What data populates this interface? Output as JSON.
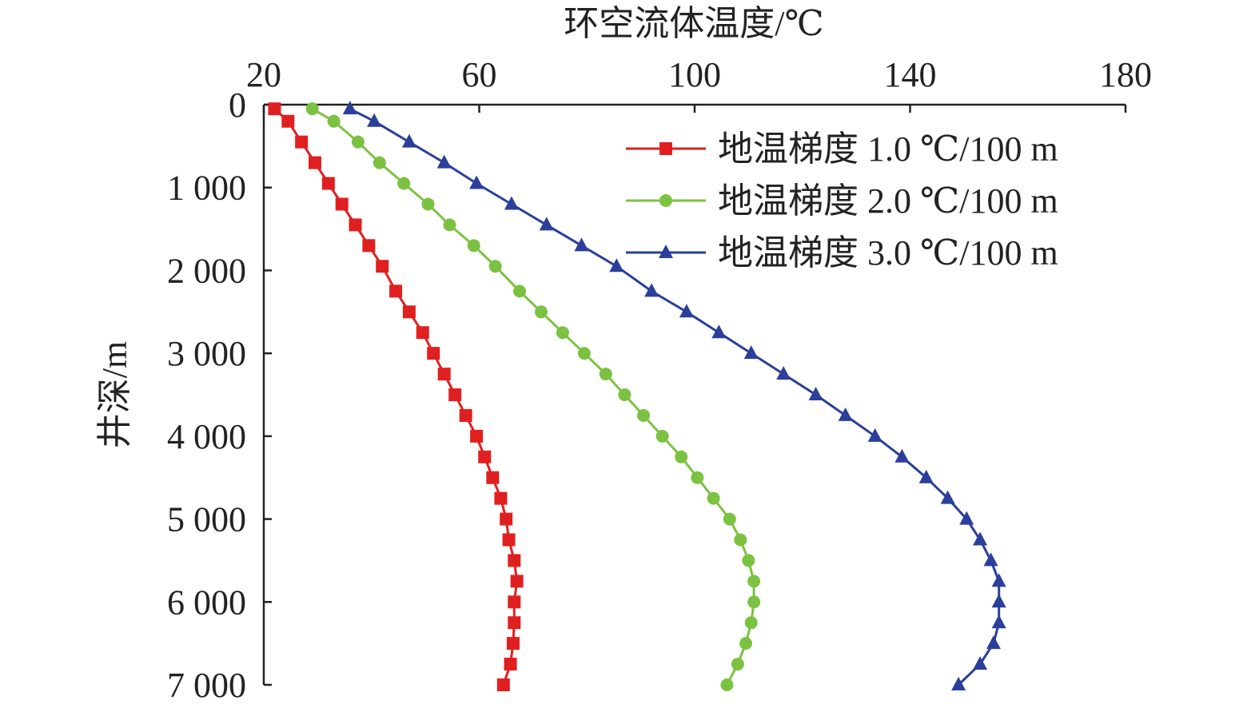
{
  "chart_data": {
    "type": "line",
    "xlabel": "环空流体温度/℃",
    "ylabel": "井深/m",
    "xlim": [
      20,
      180
    ],
    "ylim": [
      0,
      7000
    ],
    "y_inverted": true,
    "x_axis_position": "top",
    "grid": false,
    "legend_position": "top-right",
    "x_ticks": [
      20,
      60,
      100,
      140,
      180
    ],
    "x_tick_labels": [
      "20",
      "60",
      "100",
      "140",
      "180"
    ],
    "y_ticks": [
      0,
      1000,
      2000,
      3000,
      4000,
      5000,
      6000,
      7000
    ],
    "y_tick_labels": [
      "0",
      "1 000",
      "2 000",
      "3 000",
      "4 000",
      "5 000",
      "6 000",
      "7 000"
    ],
    "series": [
      {
        "name": "地温梯度 1.0 ℃/100 m",
        "color": "#e02020",
        "marker": "square",
        "points": [
          [
            22,
            50
          ],
          [
            24.5,
            200
          ],
          [
            27,
            450
          ],
          [
            29.5,
            700
          ],
          [
            32,
            950
          ],
          [
            34.5,
            1200
          ],
          [
            37,
            1450
          ],
          [
            39.5,
            1700
          ],
          [
            42,
            1950
          ],
          [
            44.5,
            2250
          ],
          [
            47,
            2500
          ],
          [
            49.5,
            2750
          ],
          [
            51.5,
            3000
          ],
          [
            53.5,
            3250
          ],
          [
            55.5,
            3500
          ],
          [
            57.5,
            3750
          ],
          [
            59.5,
            4000
          ],
          [
            61,
            4250
          ],
          [
            62.5,
            4500
          ],
          [
            64,
            4750
          ],
          [
            65,
            5000
          ],
          [
            65.5,
            5250
          ],
          [
            66.5,
            5500
          ],
          [
            67,
            5750
          ],
          [
            66.5,
            6000
          ],
          [
            66.5,
            6250
          ],
          [
            66.3,
            6500
          ],
          [
            65.8,
            6750
          ],
          [
            64.5,
            7000
          ]
        ]
      },
      {
        "name": "地温梯度 2.0 ℃/100 m",
        "color": "#7cc242",
        "marker": "circle",
        "points": [
          [
            29,
            50
          ],
          [
            33,
            200
          ],
          [
            37.5,
            450
          ],
          [
            41.5,
            700
          ],
          [
            46,
            950
          ],
          [
            50.5,
            1200
          ],
          [
            54.5,
            1450
          ],
          [
            59,
            1700
          ],
          [
            63,
            1950
          ],
          [
            67.5,
            2250
          ],
          [
            71.5,
            2500
          ],
          [
            75.5,
            2750
          ],
          [
            79.5,
            3000
          ],
          [
            83.5,
            3250
          ],
          [
            87,
            3500
          ],
          [
            90.5,
            3750
          ],
          [
            94,
            4000
          ],
          [
            97.5,
            4250
          ],
          [
            100.5,
            4500
          ],
          [
            103.5,
            4750
          ],
          [
            106.5,
            5000
          ],
          [
            108.5,
            5250
          ],
          [
            110,
            5500
          ],
          [
            111,
            5750
          ],
          [
            111,
            6000
          ],
          [
            110.5,
            6250
          ],
          [
            109.5,
            6500
          ],
          [
            108,
            6750
          ],
          [
            106,
            7000
          ]
        ]
      },
      {
        "name": "地温梯度 3.0 ℃/100 m",
        "color": "#2b3f9a",
        "marker": "triangle",
        "points": [
          [
            36,
            50
          ],
          [
            40.5,
            200
          ],
          [
            47,
            450
          ],
          [
            53.5,
            700
          ],
          [
            59.5,
            950
          ],
          [
            66,
            1200
          ],
          [
            72.5,
            1450
          ],
          [
            79,
            1700
          ],
          [
            85.5,
            1950
          ],
          [
            92,
            2250
          ],
          [
            98.5,
            2500
          ],
          [
            104.5,
            2750
          ],
          [
            110.5,
            3000
          ],
          [
            116.5,
            3250
          ],
          [
            122.5,
            3500
          ],
          [
            128,
            3750
          ],
          [
            133.5,
            4000
          ],
          [
            138.5,
            4250
          ],
          [
            143,
            4500
          ],
          [
            147,
            4750
          ],
          [
            150.5,
            5000
          ],
          [
            153,
            5250
          ],
          [
            155,
            5500
          ],
          [
            156.5,
            5750
          ],
          [
            156.5,
            6000
          ],
          [
            156.5,
            6250
          ],
          [
            155.5,
            6500
          ],
          [
            153,
            6750
          ],
          [
            149,
            7000
          ]
        ]
      }
    ]
  }
}
